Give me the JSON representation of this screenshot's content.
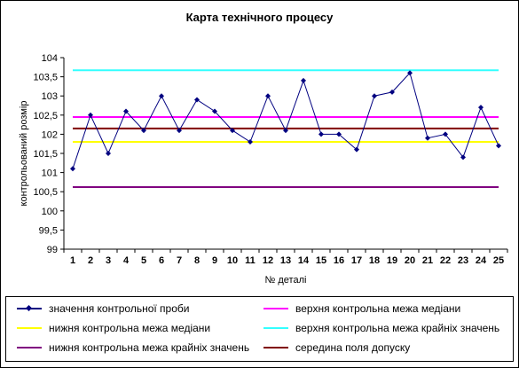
{
  "title": "Карта технічного процесу",
  "chart_data": {
    "type": "line",
    "title": "Карта технічного процесу",
    "xlabel": "№ деталі",
    "ylabel": "контрольований розмір",
    "x": [
      1,
      2,
      3,
      4,
      5,
      6,
      7,
      8,
      9,
      10,
      11,
      12,
      13,
      14,
      15,
      16,
      17,
      18,
      19,
      20,
      21,
      22,
      23,
      24,
      25
    ],
    "ylim": [
      99,
      104
    ],
    "yticks": [
      "99",
      "99,5",
      "100",
      "100,5",
      "101",
      "101,5",
      "102",
      "102,5",
      "103",
      "103,5",
      "104"
    ],
    "ytick_values": [
      99,
      99.5,
      100,
      100.5,
      101,
      101.5,
      102,
      102.5,
      103,
      103.5,
      104
    ],
    "grid": false,
    "series": [
      {
        "name": "значення контрольної проби",
        "color": "#000080",
        "marker": "diamond",
        "values": [
          101.1,
          102.5,
          101.5,
          102.6,
          102.1,
          103.0,
          102.1,
          102.9,
          102.6,
          102.1,
          101.8,
          103.0,
          102.1,
          103.4,
          102.0,
          102.0,
          101.6,
          103.0,
          103.1,
          103.6,
          101.9,
          102.0,
          101.4,
          102.7,
          101.7
        ]
      },
      {
        "name": "верхня контрольна межа медіани",
        "color": "#ff00ff",
        "constant": 102.45
      },
      {
        "name": "нижня контрольна межа медіани",
        "color": "#ffff00",
        "constant": 101.8
      },
      {
        "name": "верхня контрольна межа крайніх значень",
        "color": "#33ffff",
        "constant": 103.67
      },
      {
        "name": "нижня контрольна межа крайніх значень",
        "color": "#800080",
        "constant": 100.62
      },
      {
        "name": "середина поля допуску",
        "color": "#800000",
        "constant": 102.15
      }
    ],
    "legend_position": "bottom"
  }
}
